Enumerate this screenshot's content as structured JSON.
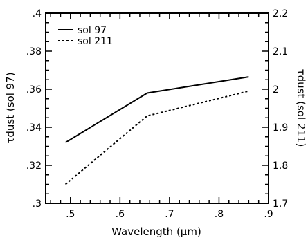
{
  "chart_data": {
    "type": "line",
    "xlabel": "Wavelength (μm)",
    "ylabel_left": "τdust (sol 97)",
    "ylabel_right": "τdust (sol 211)",
    "xlim": [
      0.45,
      0.9
    ],
    "ylim_left": [
      0.3,
      0.4
    ],
    "ylim_right": [
      1.7,
      2.2
    ],
    "x_ticks": [
      ".5",
      ".6",
      ".7",
      ".8",
      ".9"
    ],
    "y_left_ticks": [
      ".3",
      ".32",
      ".34",
      ".36",
      ".38",
      ".4"
    ],
    "y_right_ticks": [
      "1.7",
      "1.8",
      "1.9",
      "2",
      "2.1",
      "2.2"
    ],
    "legend_position": "top-left",
    "series": [
      {
        "name": "sol 97",
        "axis": "left",
        "style": "solid",
        "x": [
          0.49,
          0.655,
          0.86
        ],
        "y": [
          0.332,
          0.358,
          0.3665
        ]
      },
      {
        "name": "sol 211",
        "axis": "right",
        "style": "dashed",
        "x": [
          0.49,
          0.655,
          0.86
        ],
        "y": [
          1.75,
          1.93,
          1.995
        ]
      }
    ]
  }
}
